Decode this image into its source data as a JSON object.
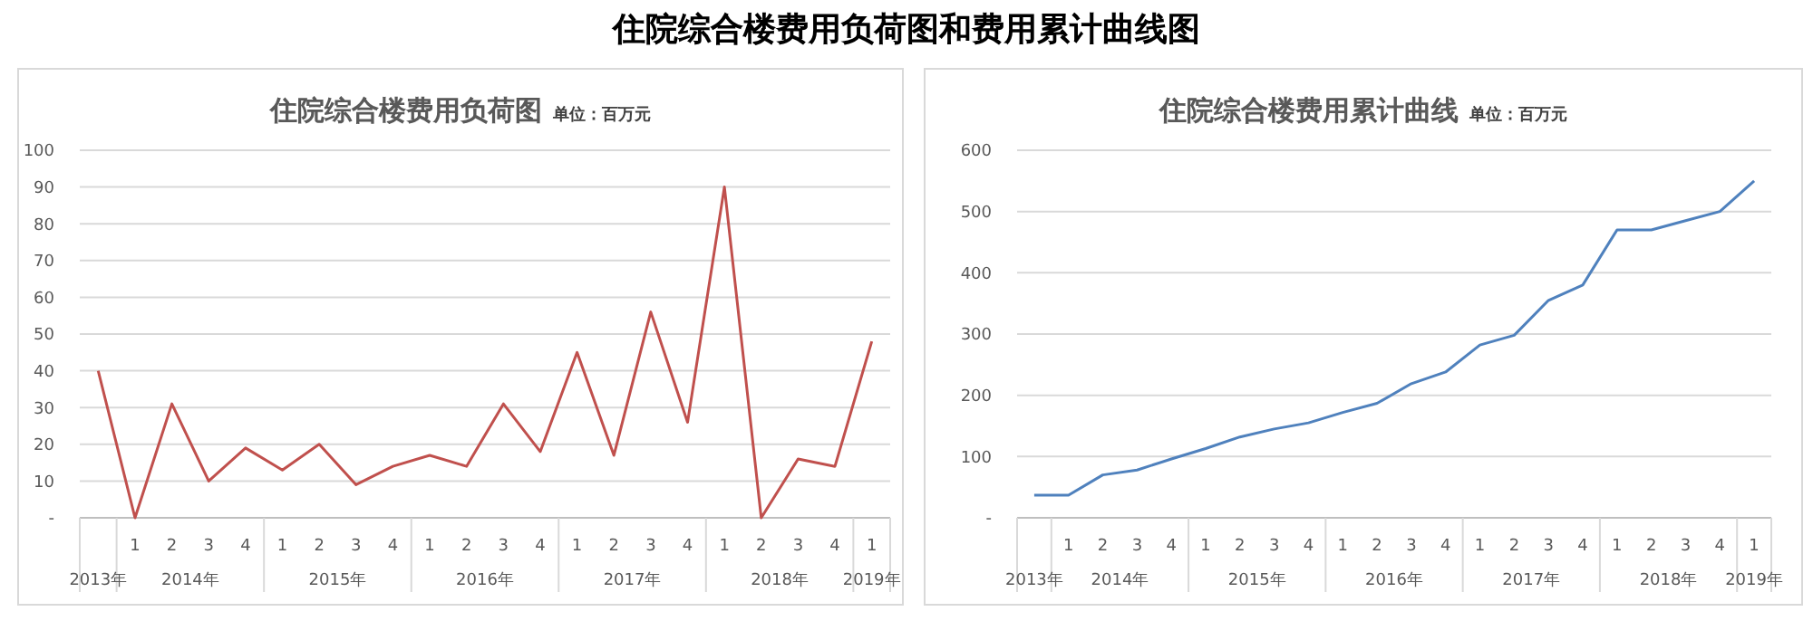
{
  "chart_data": [
    {
      "type": "line",
      "title": "住院综合楼费用负荷图",
      "subtitle": "单位：百万元",
      "categories": [
        null,
        "1",
        "2",
        "3",
        "4",
        "1",
        "2",
        "3",
        "4",
        "1",
        "2",
        "3",
        "4",
        "1",
        "2",
        "3",
        "4",
        "1",
        "2",
        "3",
        "4",
        "1"
      ],
      "series": [
        {
          "color": "#c0504d",
          "values": [
            40,
            0,
            31,
            10,
            19,
            13,
            20,
            9,
            14,
            17,
            14,
            31,
            18,
            45,
            17,
            56,
            26,
            90,
            0,
            16,
            14,
            48
          ]
        }
      ],
      "ylim": [
        0,
        100
      ],
      "yticks": [
        {
          "value": 0,
          "label": "-"
        },
        10,
        20,
        30,
        40,
        50,
        60,
        70,
        80,
        90,
        100
      ],
      "grid": "y",
      "annotations": [
        "2013年",
        "2014年",
        "2015年",
        "2016年",
        "2017年",
        "2018年",
        "2019年",
        "住院综合楼费用负荷图和费用累计曲线图"
      ]
    },
    {
      "type": "line",
      "title": "住院综合楼费用累计曲线",
      "subtitle": "单位：百万元",
      "categories": [
        null,
        "1",
        "2",
        "3",
        "4",
        "1",
        "2",
        "3",
        "4",
        "1",
        "2",
        "3",
        "4",
        "1",
        "2",
        "3",
        "4",
        "1",
        "2",
        "3",
        "4",
        "1"
      ],
      "series": [
        {
          "color": "#4f81bd",
          "values": [
            37,
            37,
            70,
            78,
            96,
            113,
            132,
            145,
            155,
            172,
            187,
            219,
            238,
            282,
            298,
            355,
            380,
            470,
            470,
            485,
            500,
            550
          ]
        }
      ],
      "ylim": [
        0,
        600
      ],
      "yticks": [
        {
          "value": 0,
          "label": "-"
        },
        100,
        200,
        300,
        400,
        500,
        600
      ],
      "grid": "y",
      "annotations": [
        "2013年",
        "2014年",
        "2015年",
        "2016年",
        "2017年",
        "2018年",
        "2019年"
      ]
    }
  ]
}
